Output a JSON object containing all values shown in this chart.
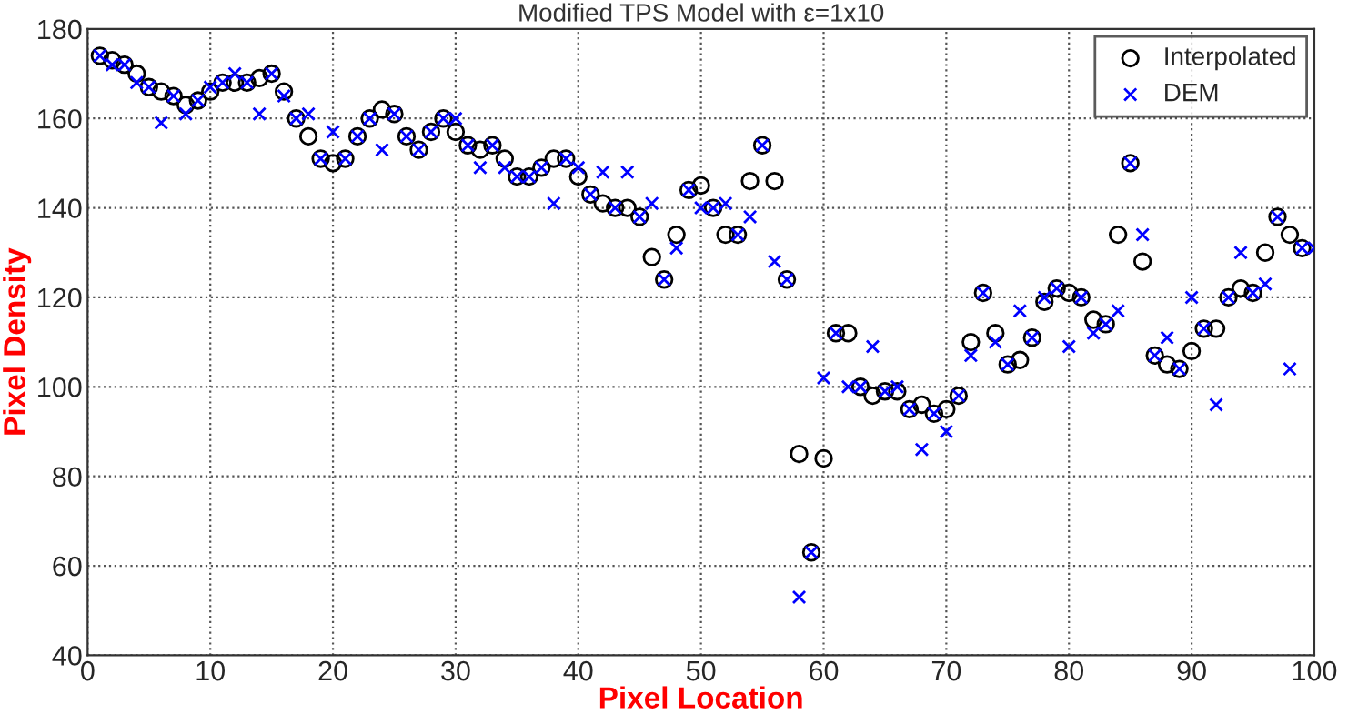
{
  "chart_data": {
    "type": "scatter",
    "title": "Modified TPS Model with ε=1x10",
    "xlabel": "Pixel Location",
    "ylabel": "Pixel Density",
    "xlim": [
      0,
      100
    ],
    "xticks": [
      0,
      10,
      20,
      30,
      40,
      50,
      60,
      70,
      80,
      90,
      100
    ],
    "ylim": [
      40,
      180
    ],
    "yticks": [
      40,
      60,
      80,
      100,
      120,
      140,
      160,
      180
    ],
    "grid": true,
    "legend": "top right",
    "series": [
      {
        "name": "Interpolated",
        "color": "#000000",
        "marker": "circle",
        "x": [
          1,
          2,
          3,
          4,
          5,
          6,
          7,
          8,
          9,
          10,
          11,
          12,
          13,
          14,
          15,
          16,
          17,
          18,
          19,
          20,
          21,
          22,
          23,
          24,
          25,
          26,
          27,
          28,
          29,
          30,
          31,
          32,
          33,
          34,
          35,
          36,
          37,
          38,
          39,
          40,
          41,
          42,
          43,
          44,
          45,
          46,
          47,
          48,
          49,
          50,
          51,
          52,
          53,
          54,
          55,
          56,
          57,
          58,
          59,
          60,
          61,
          62,
          63,
          64,
          65,
          66,
          67,
          68,
          69,
          70,
          71,
          72,
          73,
          74,
          75,
          76,
          77,
          78,
          79,
          80,
          81,
          82,
          83,
          84,
          85,
          86,
          87,
          88,
          89,
          90,
          91,
          92,
          93,
          94,
          95,
          96,
          97,
          98,
          99
        ],
        "values": [
          174,
          173,
          172,
          170,
          167,
          166,
          165,
          163,
          164,
          166,
          168,
          168,
          168,
          169,
          170,
          166,
          160,
          156,
          151,
          150,
          151,
          156,
          160,
          162,
          161,
          156,
          153,
          157,
          160,
          157,
          154,
          153,
          154,
          151,
          147,
          147,
          149,
          151,
          151,
          147,
          143,
          141,
          140,
          140,
          138,
          129,
          124,
          134,
          144,
          145,
          140,
          134,
          134,
          146,
          154,
          146,
          124,
          85,
          63,
          84,
          112,
          112,
          100,
          98,
          99,
          99,
          95,
          96,
          94,
          95,
          98,
          110,
          121,
          112,
          105,
          106,
          111,
          119,
          122,
          121,
          120,
          115,
          114,
          134,
          150,
          128,
          107,
          105,
          104,
          108,
          113,
          113,
          120,
          122,
          121,
          130,
          138,
          134,
          131
        ]
      },
      {
        "name": "DEM",
        "color": "#0000ff",
        "marker": "cross",
        "x": [
          1,
          2,
          3,
          4,
          5,
          6,
          7,
          8,
          9,
          10,
          11,
          12,
          13,
          14,
          15,
          16,
          17,
          18,
          19,
          20,
          21,
          22,
          23,
          24,
          25,
          26,
          27,
          28,
          29,
          30,
          31,
          32,
          33,
          34,
          35,
          36,
          37,
          38,
          39,
          40,
          41,
          42,
          43,
          44,
          45,
          46,
          47,
          48,
          49,
          50,
          51,
          52,
          53,
          54,
          55,
          56,
          57,
          58,
          59,
          60,
          61,
          62,
          63,
          64,
          65,
          66,
          67,
          68,
          69,
          70,
          71,
          72,
          73,
          74,
          75,
          76,
          77,
          78,
          79,
          80,
          81,
          82,
          83,
          84,
          85,
          86,
          87,
          88,
          89,
          90,
          91,
          92,
          93,
          94,
          95,
          96,
          97,
          98,
          99,
          100
        ],
        "values": [
          174,
          172,
          172,
          168,
          167,
          159,
          165,
          161,
          164,
          167,
          168,
          170,
          168,
          161,
          170,
          165,
          160,
          161,
          151,
          157,
          151,
          156,
          160,
          153,
          161,
          156,
          153,
          157,
          160,
          160,
          154,
          149,
          154,
          149,
          147,
          147,
          149,
          141,
          151,
          149,
          143,
          148,
          140,
          148,
          138,
          141,
          124,
          131,
          144,
          140,
          140,
          141,
          134,
          138,
          154,
          128,
          124,
          53,
          63,
          102,
          112,
          100,
          100,
          109,
          99,
          100,
          95,
          86,
          94,
          90,
          98,
          107,
          121,
          110,
          105,
          117,
          111,
          120,
          122,
          109,
          120,
          112,
          114,
          117,
          150,
          134,
          107,
          111,
          104,
          120,
          113,
          96,
          120,
          130,
          121,
          123,
          138,
          104,
          131,
          131
        ]
      }
    ]
  }
}
